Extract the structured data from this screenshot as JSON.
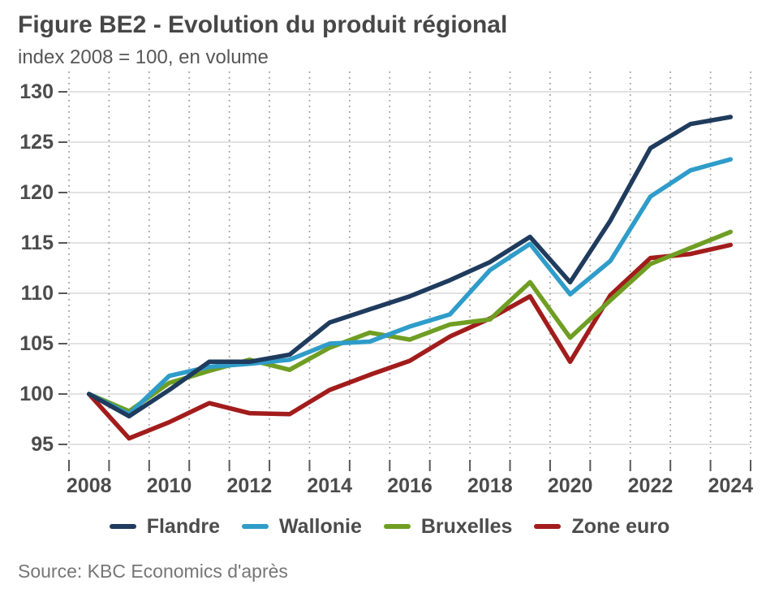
{
  "title": "Figure BE2 - Evolution du produit régional",
  "subtitle": "index 2008 = 100, en volume",
  "source": "Source: KBC Economics d'après",
  "colors": {
    "flandre": "#1f3b5d",
    "wallonie": "#2f9cc9",
    "bruxelles": "#6f9e23",
    "zone_euro": "#a21c1c",
    "grid_solid": "#d9d9d9",
    "grid_dotted": "#9a9a9a",
    "tick": "#595959",
    "axis_text": "#4c4c4c"
  },
  "chart_data": {
    "type": "line",
    "title": "Figure BE2 - Evolution du produit régional",
    "subtitle": "index 2008 = 100, en volume",
    "x": [
      2008,
      2009,
      2010,
      2011,
      2012,
      2013,
      2014,
      2015,
      2016,
      2017,
      2018,
      2019,
      2020,
      2021,
      2022,
      2023,
      2024
    ],
    "x_tick_labels": [
      "2008",
      "2010",
      "2012",
      "2014",
      "2016",
      "2018",
      "2020",
      "2022",
      "2024"
    ],
    "yticks": [
      95,
      100,
      105,
      110,
      115,
      120,
      125,
      130
    ],
    "ylim": [
      95,
      130
    ],
    "grid": {
      "horizontal": "solid",
      "vertical": "dotted"
    },
    "legend_position": "bottom",
    "series": [
      {
        "name": "Flandre",
        "color": "#1f3b5d",
        "values": [
          100,
          97.8,
          100.4,
          103.2,
          103.2,
          103.9,
          107.1,
          108.4,
          109.7,
          111.3,
          113.1,
          115.6,
          111.1,
          117.2,
          124.4,
          126.8,
          127.5
        ]
      },
      {
        "name": "Wallonie",
        "color": "#2f9cc9",
        "values": [
          100,
          98.0,
          101.8,
          102.7,
          103.0,
          103.4,
          105.0,
          105.2,
          106.7,
          107.9,
          112.3,
          114.9,
          109.9,
          113.2,
          119.6,
          122.2,
          123.3
        ]
      },
      {
        "name": "Bruxelles",
        "color": "#6f9e23",
        "values": [
          100,
          98.3,
          101.1,
          102.3,
          103.4,
          102.4,
          104.6,
          106.1,
          105.4,
          106.9,
          107.4,
          111.1,
          105.6,
          109.3,
          112.9,
          114.5,
          116.1
        ]
      },
      {
        "name": "Zone euro",
        "color": "#a21c1c",
        "values": [
          100,
          95.6,
          97.2,
          99.1,
          98.1,
          98.0,
          100.4,
          101.9,
          103.3,
          105.7,
          107.5,
          109.7,
          103.2,
          109.8,
          113.5,
          113.9,
          114.8
        ]
      }
    ]
  }
}
